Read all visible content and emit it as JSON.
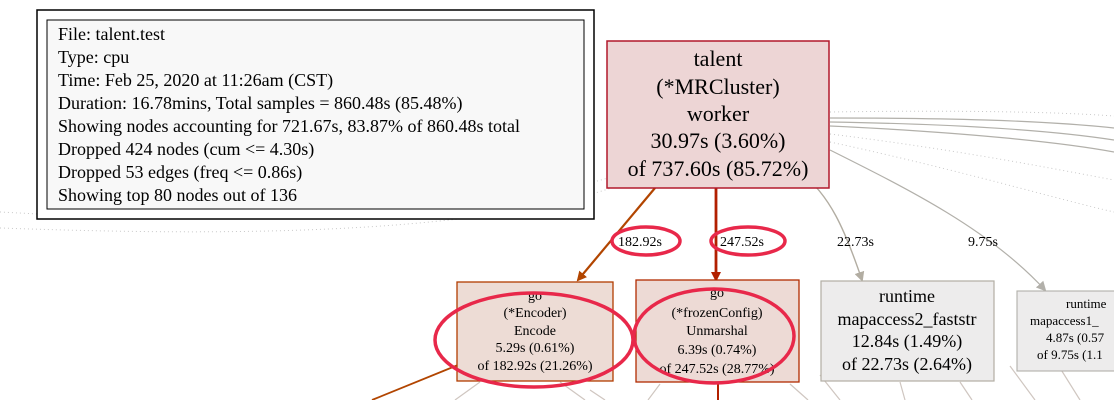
{
  "legend": {
    "file": "File: talent.test",
    "type": "Type: cpu",
    "time": "Time: Feb 25, 2020 at 11:26am (CST)",
    "duration": "Duration: 16.78mins, Total samples = 860.48s (85.48%)",
    "showing": "Showing nodes accounting for 721.67s, 83.87% of 860.48s total",
    "dropped_nodes": "Dropped 424 nodes (cum <= 4.30s)",
    "dropped_edges": "Dropped 53 edges (freq <= 0.86s)",
    "top": "Showing top 80 nodes out of 136"
  },
  "nodes": {
    "worker": {
      "lines": [
        "talent",
        "(*MRCluster)",
        "worker",
        "30.97s (3.60%)",
        "of 737.60s (85.72%)"
      ],
      "fill": "#edd5d5",
      "stroke": "#b2182b"
    },
    "encode": {
      "lines": [
        "go",
        "(*Encoder)",
        "Encode",
        "5.29s (0.61%)",
        "of 182.92s (21.26%)"
      ],
      "fill": "#eddcd5",
      "stroke": "#b23d00"
    },
    "unmarshal": {
      "lines": [
        "go",
        "(*frozenConfig)",
        "Unmarshal",
        "6.39s (0.74%)",
        "of 247.52s (28.77%)"
      ],
      "fill": "#eddad5",
      "stroke": "#b22b00"
    },
    "mapaccess2": {
      "lines": [
        "runtime",
        "mapaccess2_faststr",
        "12.84s (1.49%)",
        "of 22.73s (2.64%)"
      ],
      "fill": "#edecec",
      "stroke": "#b2aea4"
    },
    "mapaccess1": {
      "lines": [
        "runtime",
        "mapaccess1_",
        "4.87s (0.57",
        "of 9.75s (1.1"
      ],
      "fill": "#edecec",
      "stroke": "#b2b0aa"
    }
  },
  "edges": {
    "to_encode": "182.92s",
    "to_unmarshal": "247.52s",
    "to_mapaccess2": "22.73s",
    "to_mapaccess1": "9.75s"
  },
  "colors": {
    "highlight": "#e8284a",
    "edge_red": "#b23200",
    "edge_orange": "#b24500",
    "edge_gray": "#b2ada2",
    "edge_light": "#b2b0aa",
    "dotted": "#c9c9c9"
  }
}
